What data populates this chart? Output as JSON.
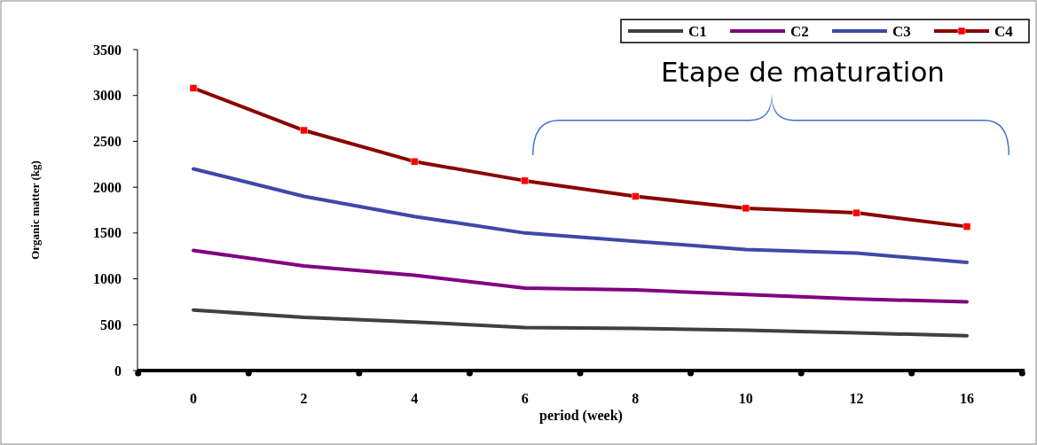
{
  "chart_data": {
    "type": "line",
    "xlabel": "period (week)",
    "ylabel": "Organic matter (kg)",
    "categories": [
      "0",
      "2",
      "4",
      "6",
      "8",
      "10",
      "12",
      "16"
    ],
    "series": [
      {
        "name": "C1",
        "color": "#404040",
        "values": [
          660,
          580,
          530,
          470,
          460,
          440,
          410,
          380
        ]
      },
      {
        "name": "C2",
        "color": "#800080",
        "values": [
          1310,
          1140,
          1040,
          900,
          880,
          830,
          780,
          750
        ]
      },
      {
        "name": "C3",
        "color": "#3f48a8",
        "values": [
          2200,
          1900,
          1680,
          1500,
          1410,
          1320,
          1280,
          1180
        ]
      },
      {
        "name": "C4",
        "color": "#8b0000",
        "marker": "square",
        "values": [
          3080,
          2620,
          2280,
          2070,
          1900,
          1770,
          1720,
          1570
        ]
      }
    ],
    "ylim": [
      0,
      3500
    ],
    "yticks": [
      0,
      500,
      1000,
      1500,
      2000,
      2500,
      3000,
      3500
    ],
    "grid": false,
    "legend": "top right",
    "marker": "none",
    "line_style": "solid",
    "annotations": [
      "Etape de maturation"
    ]
  }
}
